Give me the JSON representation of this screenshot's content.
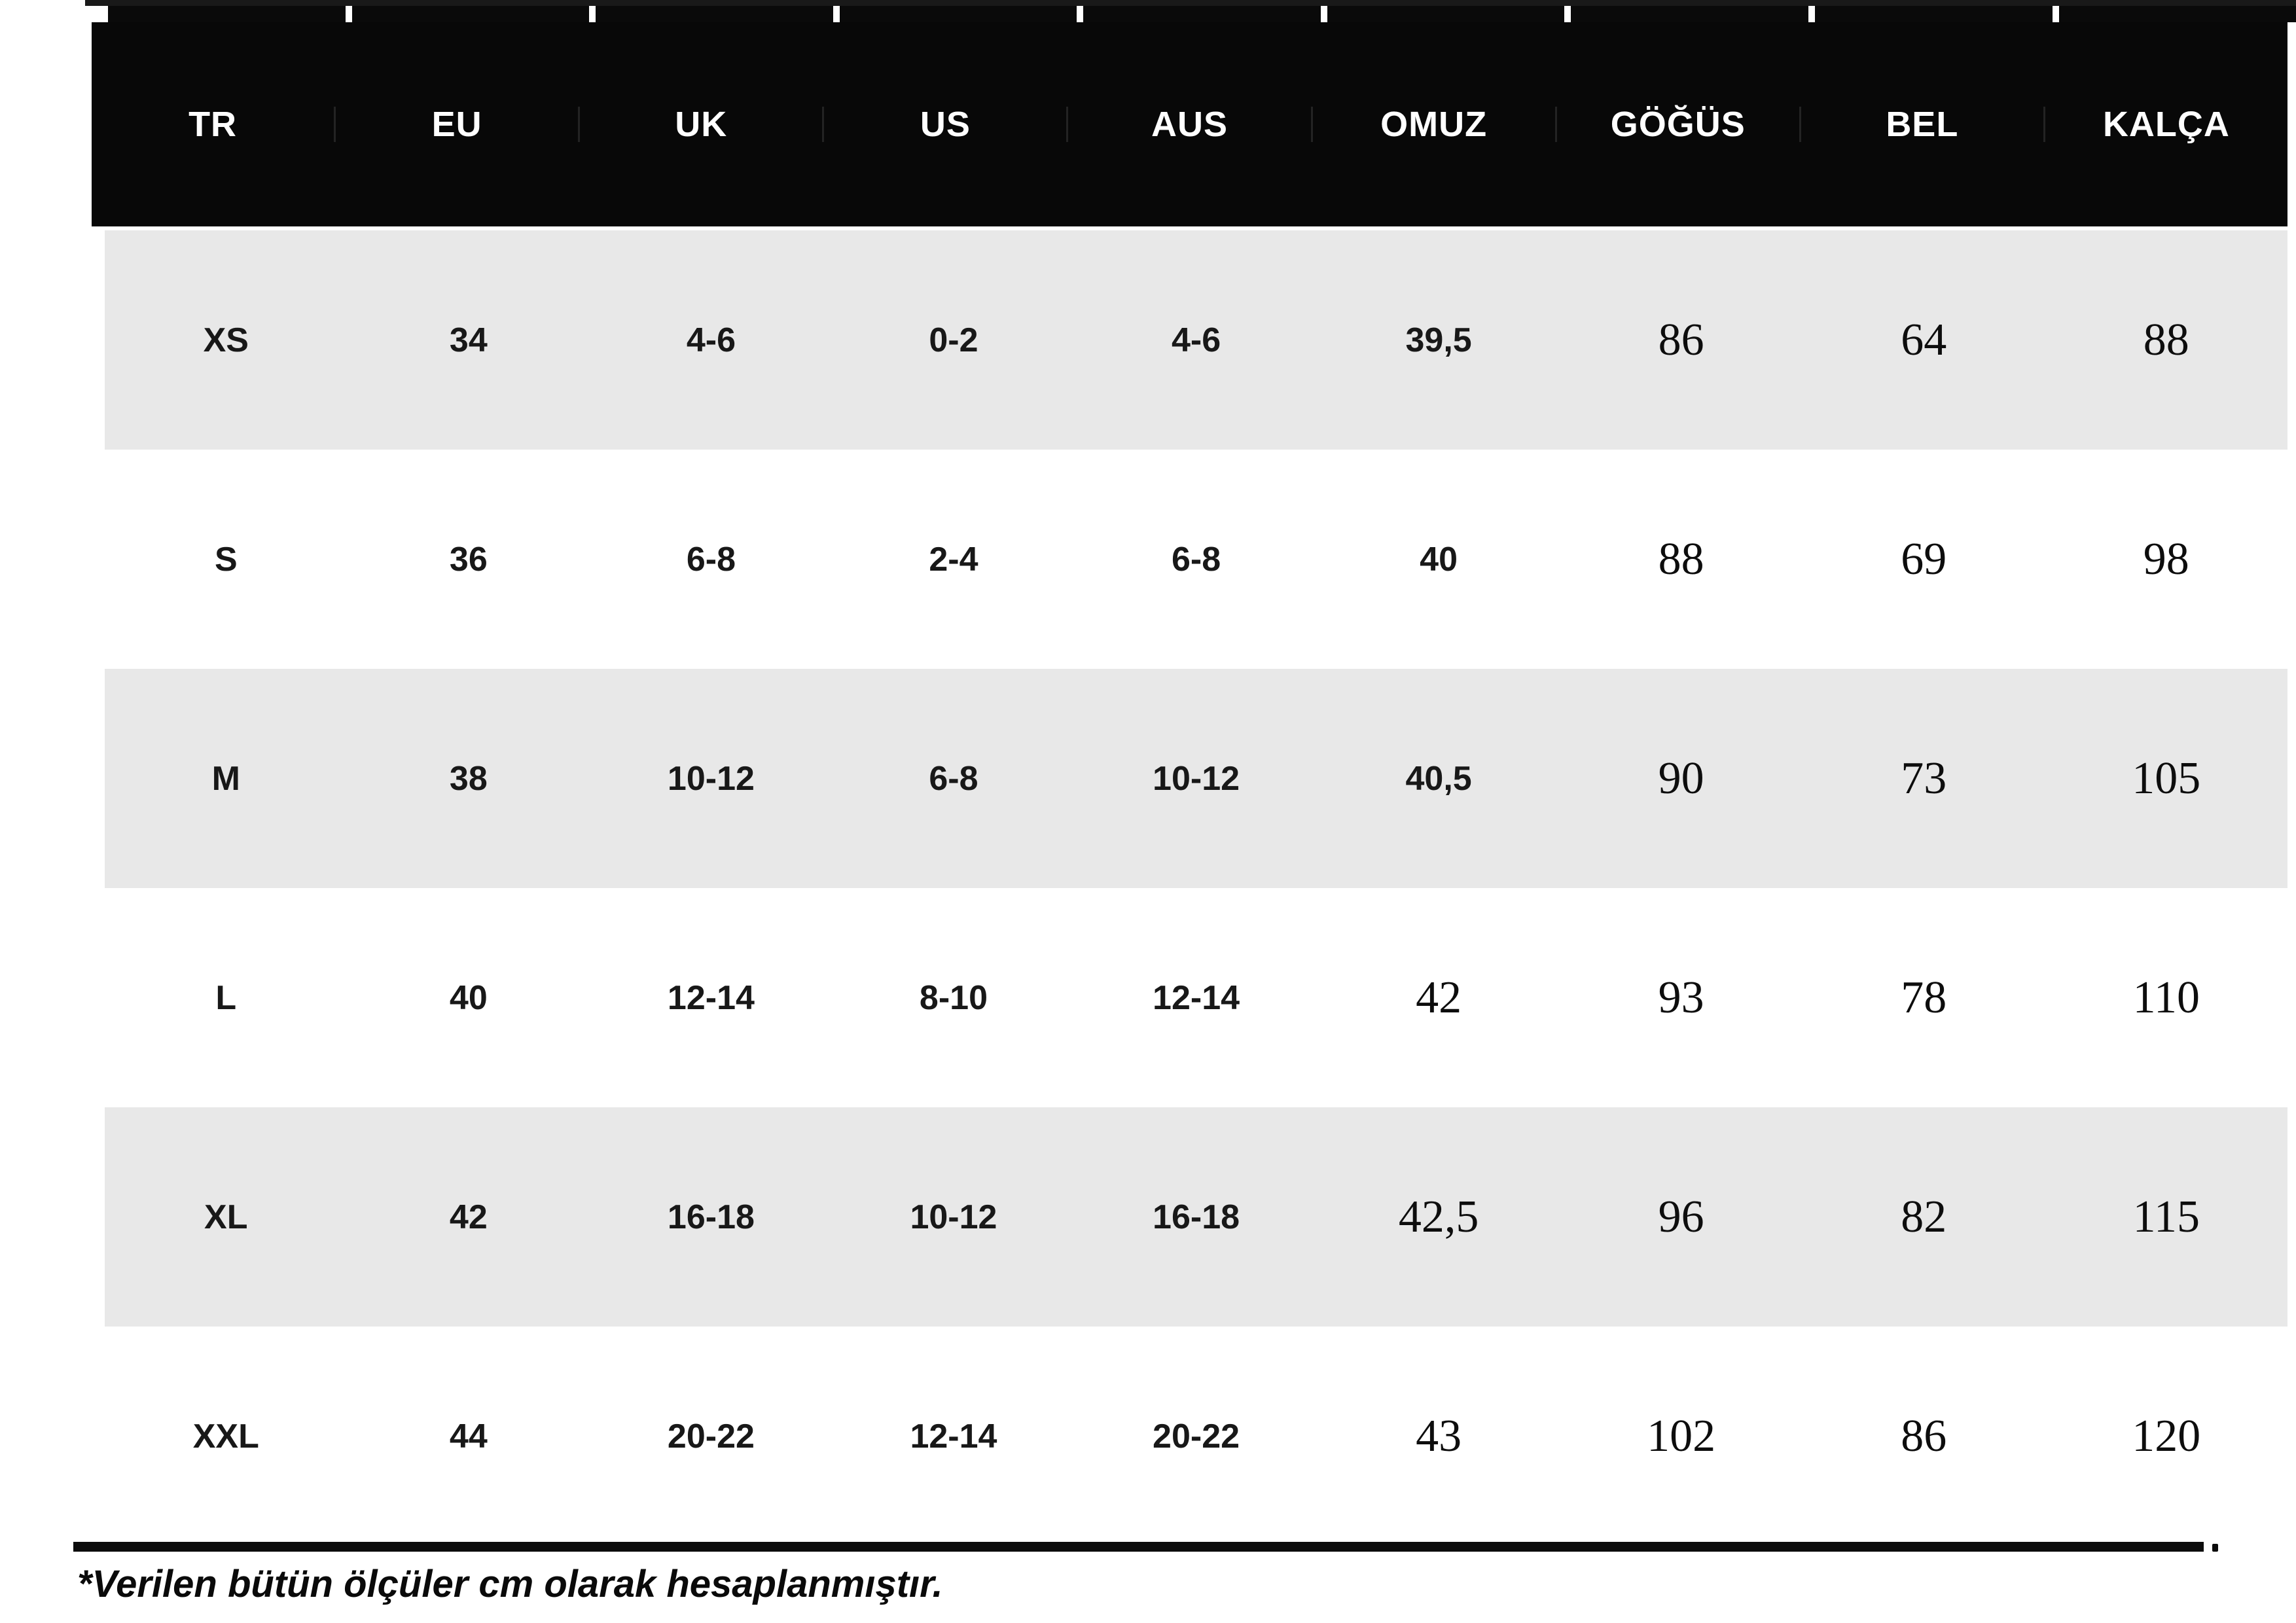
{
  "colors": {
    "header_bg": "#080808",
    "header_text": "#ffffff",
    "row_shade": "#e8e8e8",
    "row_white": "#ffffff",
    "cell_text": "#181818",
    "rule": "#0c0c0c",
    "top_edge": "#191919"
  },
  "table": {
    "columns": [
      {
        "key": "tr",
        "label": "TR"
      },
      {
        "key": "eu",
        "label": "EU"
      },
      {
        "key": "uk",
        "label": "UK"
      },
      {
        "key": "us",
        "label": "US"
      },
      {
        "key": "aus",
        "label": "AUS"
      },
      {
        "key": "omuz",
        "label": "OMUZ"
      },
      {
        "key": "gogus",
        "label": "GÖĞÜS"
      },
      {
        "key": "bel",
        "label": "BEL"
      },
      {
        "key": "kalca",
        "label": "KALÇA"
      }
    ],
    "rows": [
      {
        "size": "xs",
        "shaded": true,
        "cells": [
          {
            "v": "XS"
          },
          {
            "v": "34"
          },
          {
            "v": "4-6"
          },
          {
            "v": "0-2"
          },
          {
            "v": "4-6"
          },
          {
            "v": "39,5"
          },
          {
            "v": "86",
            "serif": true
          },
          {
            "v": "64",
            "serif": true
          },
          {
            "v": "88",
            "serif": true
          }
        ]
      },
      {
        "size": "s",
        "shaded": false,
        "cells": [
          {
            "v": "S"
          },
          {
            "v": "36"
          },
          {
            "v": "6-8"
          },
          {
            "v": "2-4"
          },
          {
            "v": "6-8"
          },
          {
            "v": "40"
          },
          {
            "v": "88",
            "serif": true
          },
          {
            "v": "69",
            "serif": true
          },
          {
            "v": "98",
            "serif": true
          }
        ]
      },
      {
        "size": "m",
        "shaded": true,
        "cells": [
          {
            "v": "M"
          },
          {
            "v": "38"
          },
          {
            "v": "10-12"
          },
          {
            "v": "6-8"
          },
          {
            "v": "10-12"
          },
          {
            "v": "40,5"
          },
          {
            "v": "90",
            "serif": true
          },
          {
            "v": "73",
            "serif": true
          },
          {
            "v": "105",
            "serif": true
          }
        ]
      },
      {
        "size": "l",
        "shaded": false,
        "cells": [
          {
            "v": "L"
          },
          {
            "v": "40"
          },
          {
            "v": "12-14"
          },
          {
            "v": "8-10"
          },
          {
            "v": "12-14"
          },
          {
            "v": "42",
            "serif": true
          },
          {
            "v": "93",
            "serif": true
          },
          {
            "v": "78",
            "serif": true
          },
          {
            "v": "110",
            "serif": true
          }
        ]
      },
      {
        "size": "xl",
        "shaded": true,
        "cells": [
          {
            "v": "XL"
          },
          {
            "v": "42"
          },
          {
            "v": "16-18"
          },
          {
            "v": "10-12"
          },
          {
            "v": "16-18"
          },
          {
            "v": "42,5",
            "serif": true
          },
          {
            "v": "96",
            "serif": true
          },
          {
            "v": "82",
            "serif": true
          },
          {
            "v": "115",
            "serif": true
          }
        ]
      },
      {
        "size": "xxl",
        "shaded": false,
        "cells": [
          {
            "v": "XXL"
          },
          {
            "v": "44"
          },
          {
            "v": "20-22"
          },
          {
            "v": "12-14"
          },
          {
            "v": "20-22"
          },
          {
            "v": "43",
            "serif": true
          },
          {
            "v": "102",
            "serif": true
          },
          {
            "v": "86",
            "serif": true
          },
          {
            "v": "120",
            "serif": true
          }
        ]
      }
    ]
  },
  "footnote": {
    "text": "*Verilen bütün ölçüler cm olarak hesaplanmıştır."
  }
}
